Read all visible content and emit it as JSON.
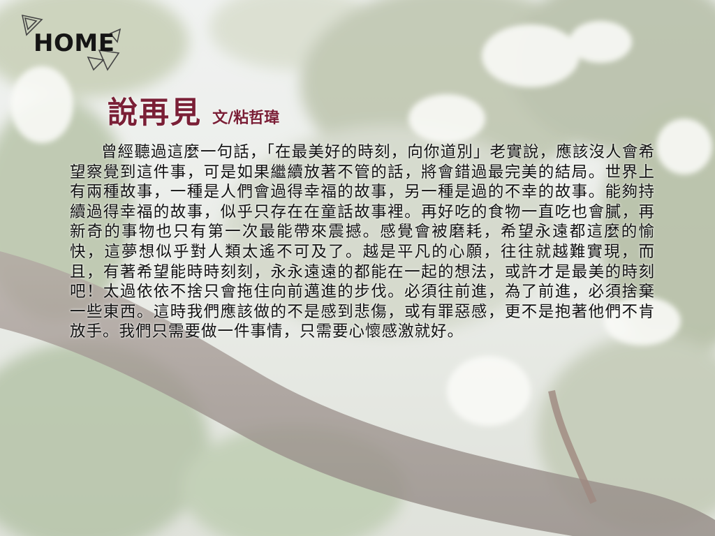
{
  "nav": {
    "home_label": "HOME"
  },
  "article": {
    "title": "說再見",
    "author": "文/粘哲瑋",
    "body": "曾經聽過這麼一句話，「在最美好的時刻，向你道別」老實說，應該沒人會希望察覺到這件事，可是如果繼續放著不管的話，將會錯過最完美的結局。世界上有兩種故事，一種是人們會過得幸福的故事，另一種是過的不幸的故事。能夠持續過得幸福的故事，似乎只存在在童話故事裡。再好吃的食物一直吃也會膩，再新奇的事物也只有第一次最能帶來震撼。感覺會被磨耗，希望永遠都這麼的愉快，這夢想似乎對人類太遙不可及了。越是平凡的心願，往往就越難實現，而且，有著希望能時時刻刻，永永遠遠的都能在一起的想法，或許才是最美的時刻吧！太過依依不捨只會拖住向前邁進的步伐。必須往前進，為了前進，必須捨棄一些東西。這時我們應該做的不是感到悲傷，或有罪惡感，更不是抱著他們不肯放手。我們只需要做一件事情，只需要心懷感激就好。"
  },
  "colors": {
    "title": "#7a1f36",
    "body_text": "#111111",
    "home_text": "#151515"
  }
}
